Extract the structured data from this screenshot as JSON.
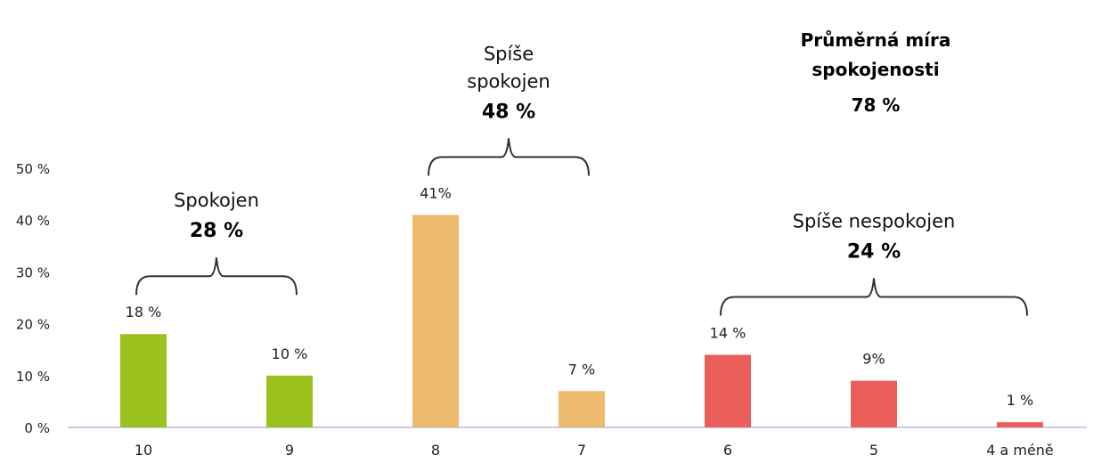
{
  "chart_data": {
    "type": "bar",
    "categories": [
      "10",
      "9",
      "8",
      "7",
      "6",
      "5",
      "4 a méně"
    ],
    "values": [
      18,
      10,
      41,
      7,
      14,
      9,
      1
    ],
    "value_labels": [
      "18 %",
      "10 %",
      "41%",
      "7 %",
      "14 %",
      "9%",
      "1 %"
    ],
    "bar_colors": [
      "#9BC11E",
      "#9BC11E",
      "#EDBB6E",
      "#EDBB6E",
      "#EA5F5A",
      "#EA5F5A",
      "#EA5F5A"
    ],
    "ylim": [
      0,
      50
    ],
    "yticks": [
      0,
      10,
      20,
      30,
      40,
      50
    ],
    "ytick_labels": [
      "0 %",
      "10 %",
      "20 %",
      "30 %",
      "40 %",
      "50 %"
    ],
    "grid": false,
    "groups": [
      {
        "name_lines": [
          "Spokojen"
        ],
        "percent": "28 %",
        "from": 0,
        "to": 1,
        "color": "#9BC11E"
      },
      {
        "name_lines": [
          "Spíše",
          "spokojen"
        ],
        "percent": "48 %",
        "from": 2,
        "to": 3,
        "color": "#EDBB6E"
      },
      {
        "name_lines": [
          "Spíše nespokojen"
        ],
        "percent": "24 %",
        "from": 4,
        "to": 6,
        "color": "#EA5F5A"
      }
    ],
    "summary": {
      "lines": [
        "Průměrná míra",
        "spokojenosti"
      ],
      "value": "78 %"
    }
  }
}
